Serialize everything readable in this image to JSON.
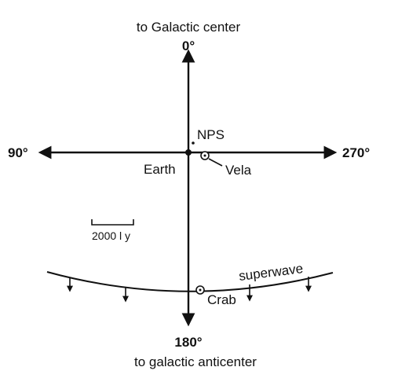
{
  "labels": {
    "top_caption": "to Galactic center",
    "top_angle": "0°",
    "left_angle": "90°",
    "right_angle": "270°",
    "bottom_angle": "180°",
    "bottom_caption": "to galactic anticenter",
    "nps": "NPS",
    "earth": "Earth",
    "vela": "Vela",
    "scale": "2000 l y",
    "superwave": "superwave",
    "crab": "Crab"
  }
}
